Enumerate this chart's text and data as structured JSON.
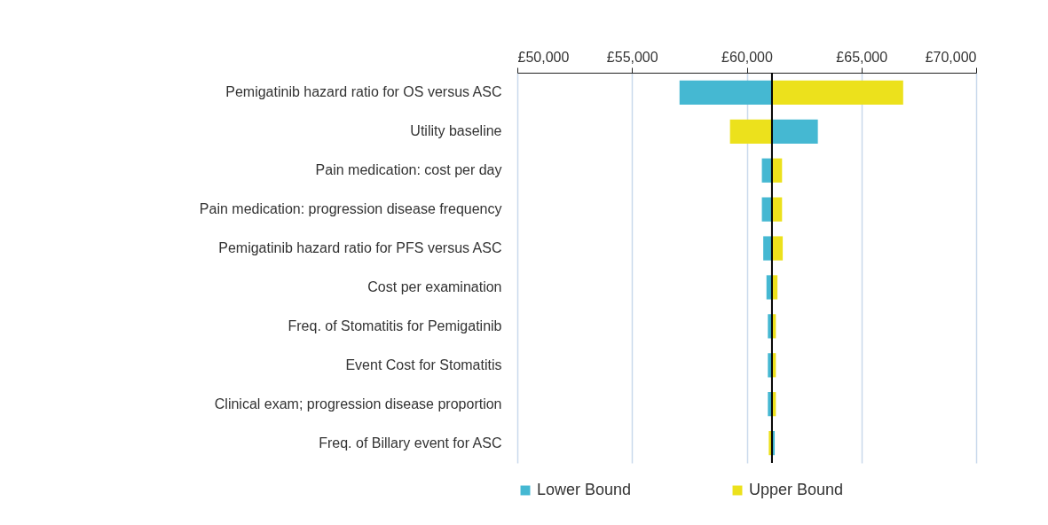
{
  "chart_data": {
    "type": "bar",
    "orientation": "horizontal",
    "categories": [
      "Pemigatinib hazard ratio for OS versus ASC",
      "Utility baseline",
      "Pain medication: cost per day",
      "Pain medication: progression disease frequency",
      "Pemigatinib hazard ratio for PFS versus ASC",
      "Cost per examination",
      "Freq. of Stomatitis for Pemigatinib",
      "Event Cost for Stomatitis",
      "Clinical exam; progression disease proportion",
      "Freq. of Billary event for ASC"
    ],
    "series": [
      {
        "name": "Lower Bound",
        "color": "#45b8d2",
        "base": [
          61100,
          61100,
          61100,
          61100,
          61100,
          61100,
          61100,
          61100,
          61100,
          61100
        ],
        "values": [
          -4030,
          2000,
          -440,
          -440,
          -380,
          -240,
          -180,
          -180,
          -180,
          120
        ]
      },
      {
        "name": "Upper Bound",
        "color": "#ece11c",
        "base": [
          61100,
          61100,
          61100,
          61100,
          61100,
          61100,
          61100,
          61100,
          61100,
          61100
        ],
        "values": [
          5720,
          -1830,
          440,
          440,
          470,
          240,
          170,
          170,
          170,
          -140
        ]
      }
    ],
    "xlim": [
      50000,
      70000
    ],
    "xticks": [
      {
        "value": 50000,
        "label": "£50,000"
      },
      {
        "value": 55000,
        "label": "£55,000"
      },
      {
        "value": 60000,
        "label": "£60,000"
      },
      {
        "value": 65000,
        "label": "£65,000"
      },
      {
        "value": 70000,
        "label": "£70,000"
      }
    ],
    "ref_lines": [
      {
        "axis": "x",
        "value": 61100,
        "color": "#000000"
      }
    ],
    "grid": "x",
    "legend": "bottom"
  }
}
